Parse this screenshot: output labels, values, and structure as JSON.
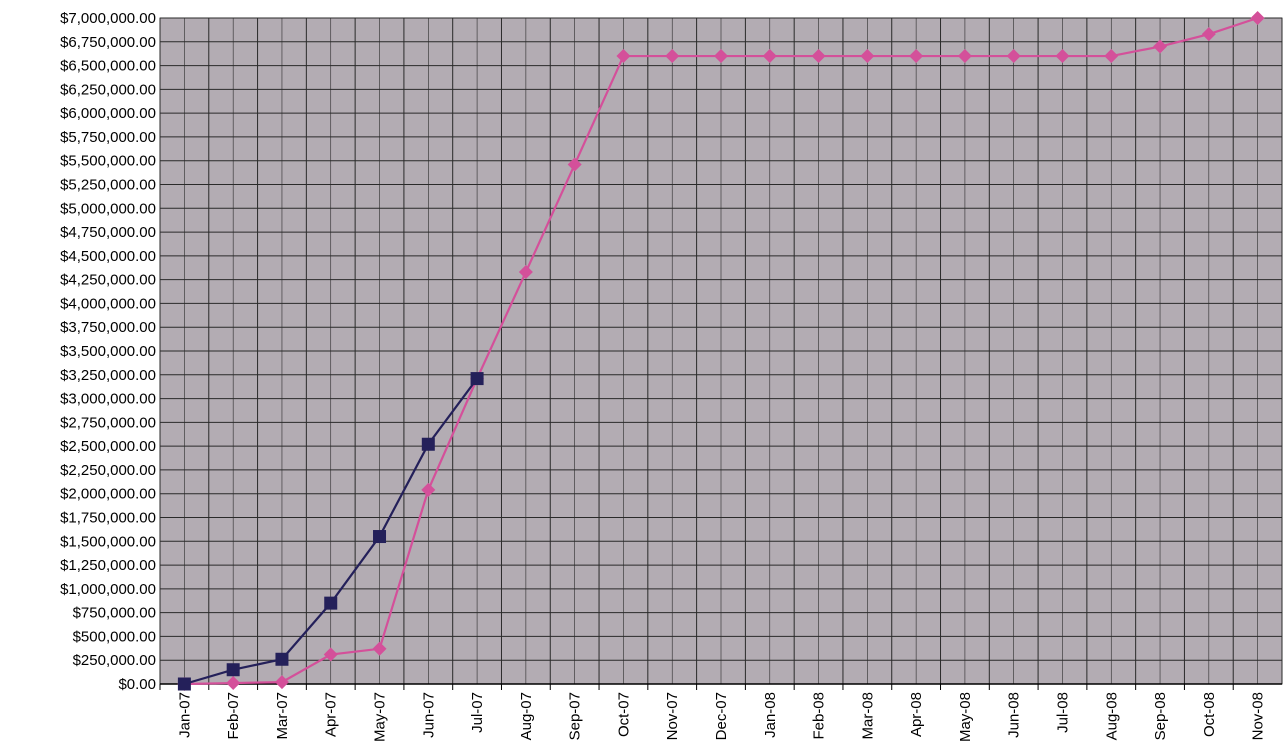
{
  "chart_data": {
    "type": "line",
    "title": "",
    "xlabel": "",
    "ylabel": "",
    "categories": [
      "Jan-07",
      "Feb-07",
      "Mar-07",
      "Apr-07",
      "May-07",
      "Jun-07",
      "Jul-07",
      "Aug-07",
      "Sep-07",
      "Oct-07",
      "Nov-07",
      "Dec-07",
      "Jan-08",
      "Feb-08",
      "Mar-08",
      "Apr-08",
      "May-08",
      "Jun-08",
      "Jul-08",
      "Aug-08",
      "Sep-08",
      "Oct-08",
      "Nov-08"
    ],
    "ylim": [
      0,
      7000000
    ],
    "ytick_step": 250000,
    "yticks": [
      "$0.00",
      "$250,000.00",
      "$500,000.00",
      "$750,000.00",
      "$1,000,000.00",
      "$1,250,000.00",
      "$1,500,000.00",
      "$1,750,000.00",
      "$2,000,000.00",
      "$2,250,000.00",
      "$2,500,000.00",
      "$2,750,000.00",
      "$3,000,000.00",
      "$3,250,000.00",
      "$3,500,000.00",
      "$3,750,000.00",
      "$4,000,000.00",
      "$4,250,000.00",
      "$4,500,000.00",
      "$4,750,000.00",
      "$5,000,000.00",
      "$5,250,000.00",
      "$5,500,000.00",
      "$5,750,000.00",
      "$6,000,000.00",
      "$6,250,000.00",
      "$6,500,000.00",
      "$6,750,000.00",
      "$7,000,000.00"
    ],
    "grid": true,
    "legend": "none",
    "colors": {
      "plot_bg": "#b3acb3",
      "grid": "#2a2a2a",
      "series_dark": "#24205a",
      "series_pink": "#d4509a"
    },
    "series": [
      {
        "marker": "square",
        "color": "#24205a",
        "values": [
          0,
          150000,
          260000,
          850000,
          1550000,
          2520000,
          3210000,
          null,
          null,
          null,
          null,
          null,
          null,
          null,
          null,
          null,
          null,
          null,
          null,
          null,
          null,
          null,
          null
        ]
      },
      {
        "marker": "diamond",
        "color": "#d4509a",
        "values": [
          0,
          10000,
          20000,
          310000,
          370000,
          2040000,
          3210000,
          4330000,
          5460000,
          6600000,
          6600000,
          6600000,
          6600000,
          6600000,
          6600000,
          6600000,
          6600000,
          6600000,
          6600000,
          6600000,
          6700000,
          6830000,
          7000000
        ]
      }
    ]
  }
}
